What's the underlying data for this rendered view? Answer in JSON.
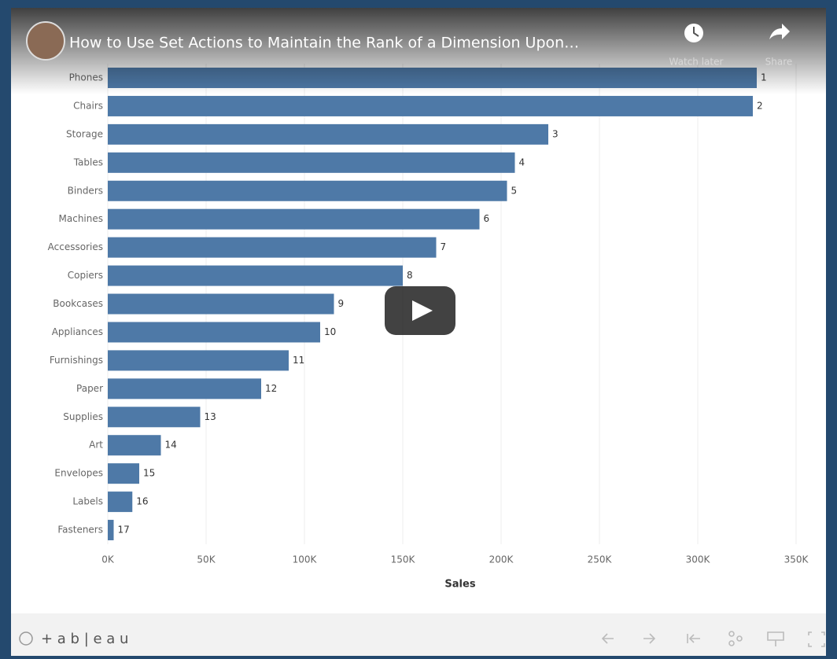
{
  "video": {
    "title": "How to Use Set Actions to Maintain the Rank of a Dimension Upon…",
    "watch_later": "Watch later",
    "share": "Share"
  },
  "footer": {
    "brand": "+ a b | e a u"
  },
  "chart_data": {
    "type": "bar",
    "orientation": "horizontal",
    "x_label": "Sales",
    "categories": [
      "Phones",
      "Chairs",
      "Storage",
      "Tables",
      "Binders",
      "Machines",
      "Accessories",
      "Copiers",
      "Bookcases",
      "Appliances",
      "Furnishings",
      "Paper",
      "Supplies",
      "Art",
      "Envelopes",
      "Labels",
      "Fasteners"
    ],
    "values": [
      330000,
      328000,
      224000,
      207000,
      203000,
      189000,
      167000,
      150000,
      115000,
      108000,
      92000,
      78000,
      47000,
      27000,
      16000,
      12500,
      3000
    ],
    "rank_labels": [
      1,
      2,
      3,
      4,
      5,
      6,
      7,
      8,
      9,
      10,
      11,
      12,
      13,
      14,
      15,
      16,
      17
    ],
    "color": "#4e79a7",
    "xlim": [
      0,
      350000
    ],
    "xticks": [
      {
        "value": 0,
        "label": "0K"
      },
      {
        "value": 50000,
        "label": "50K"
      },
      {
        "value": 100000,
        "label": "100K"
      },
      {
        "value": 150000,
        "label": "150K"
      },
      {
        "value": 200000,
        "label": "200K"
      },
      {
        "value": 250000,
        "label": "250K"
      },
      {
        "value": 300000,
        "label": "300K"
      },
      {
        "value": 350000,
        "label": "350K"
      }
    ],
    "grid": true
  }
}
